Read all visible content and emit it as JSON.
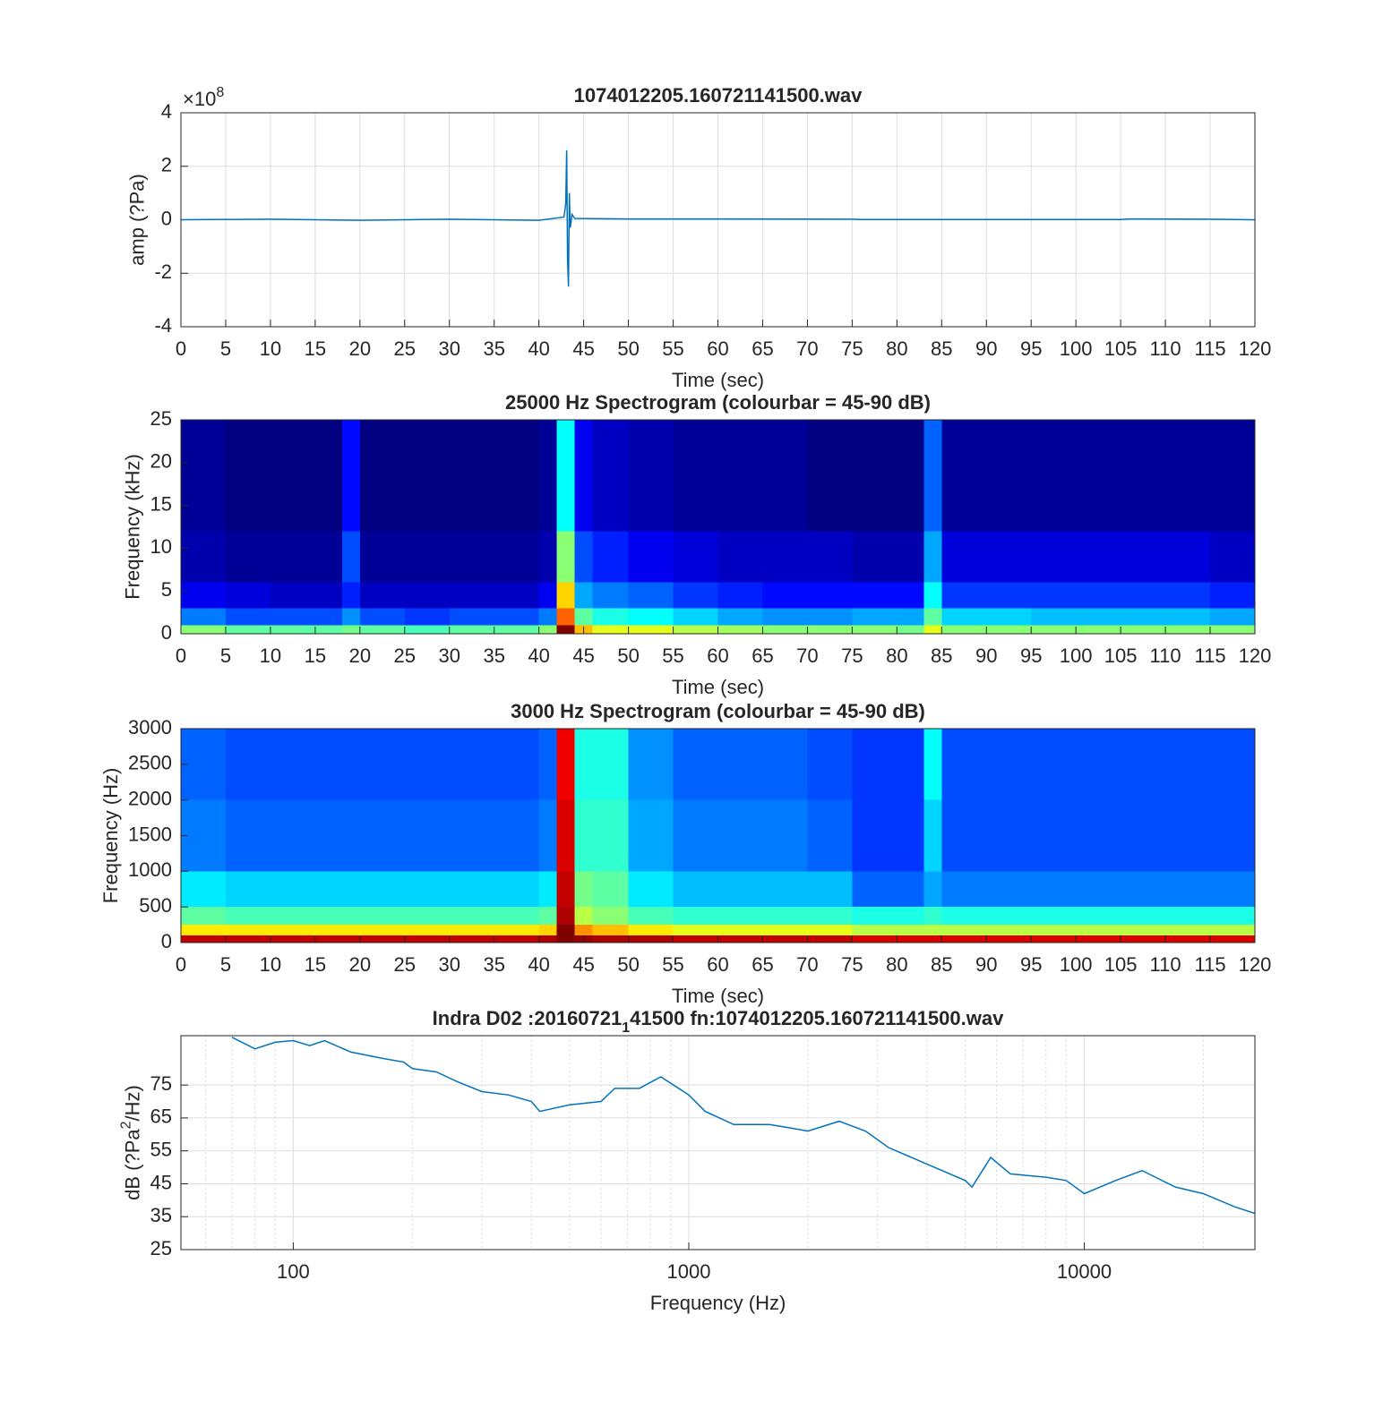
{
  "chart_data": [
    {
      "type": "line",
      "title": "1074012205.160721141500.wav",
      "xlabel": "Time (sec)",
      "ylabel": "amp (?Pa)",
      "y_multiplier": "×10",
      "y_multiplier_exp": "8",
      "x": [
        0,
        10,
        20,
        30,
        40,
        42.8,
        43.0,
        43.1,
        43.2,
        43.3,
        43.4,
        43.5,
        43.7,
        44,
        46,
        50,
        60,
        75,
        76,
        90,
        105,
        106,
        115,
        120
      ],
      "values": [
        0,
        0.02,
        -0.02,
        0.02,
        -0.02,
        0.1,
        0.6,
        2.6,
        -1.5,
        -2.5,
        1.0,
        -0.3,
        0.2,
        0.05,
        0.04,
        0.03,
        0.03,
        0.02,
        0.01,
        0.01,
        0.01,
        0.03,
        0.02,
        0
      ],
      "color": "#0072bd",
      "xlim": [
        0,
        120
      ],
      "ylim": [
        -4,
        4
      ],
      "xticks": [
        0,
        5,
        10,
        15,
        20,
        25,
        30,
        35,
        40,
        45,
        50,
        55,
        60,
        65,
        70,
        75,
        80,
        85,
        90,
        95,
        100,
        105,
        110,
        115,
        120
      ],
      "yticks": [
        -4,
        -2,
        0,
        2,
        4
      ],
      "grid": true
    },
    {
      "type": "heatmap",
      "title": "25000 Hz Spectrogram (colourbar = 45-90 dB)",
      "xlabel": "Time (sec)",
      "ylabel": "Frequency (kHz)",
      "colormap": "jet",
      "clim": [
        45,
        90
      ],
      "x_edges": [
        0,
        5,
        10,
        15,
        18,
        20,
        25,
        30,
        35,
        40,
        42,
        44,
        46,
        50,
        55,
        60,
        65,
        70,
        75,
        80,
        83,
        85,
        90,
        95,
        100,
        105,
        110,
        115,
        120
      ],
      "y_edges": [
        0,
        1,
        3,
        6,
        12,
        25
      ],
      "z": [
        [
          68,
          66,
          66,
          66,
          67,
          66,
          65,
          66,
          66,
          68,
          90,
          76,
          72,
          72,
          70,
          69,
          68,
          68,
          68,
          67,
          72,
          68,
          68,
          68,
          68,
          68,
          68,
          68
        ],
        [
          56,
          54,
          54,
          54,
          57,
          54,
          53,
          54,
          54,
          56,
          80,
          66,
          63,
          62,
          60,
          58,
          57,
          57,
          58,
          58,
          66,
          60,
          60,
          59,
          59,
          59,
          59,
          58
        ],
        [
          50,
          49,
          48,
          48,
          52,
          48,
          48,
          48,
          48,
          50,
          75,
          58,
          56,
          55,
          53,
          52,
          51,
          51,
          51,
          51,
          62,
          53,
          53,
          53,
          53,
          53,
          53,
          52
        ],
        [
          47,
          46,
          46,
          46,
          54,
          46,
          46,
          46,
          46,
          47,
          68,
          54,
          52,
          50,
          49,
          48,
          48,
          48,
          47,
          47,
          58,
          49,
          49,
          49,
          49,
          49,
          49,
          48
        ],
        [
          46,
          45,
          45,
          45,
          51,
          45,
          45,
          45,
          45,
          46,
          62,
          50,
          48,
          47,
          46,
          46,
          46,
          45,
          45,
          45,
          55,
          46,
          46,
          46,
          46,
          46,
          46,
          46
        ]
      ],
      "xlim": [
        0,
        120
      ],
      "ylim": [
        0,
        25
      ],
      "xticks": [
        0,
        5,
        10,
        15,
        20,
        25,
        30,
        35,
        40,
        45,
        50,
        55,
        60,
        65,
        70,
        75,
        80,
        85,
        90,
        95,
        100,
        105,
        110,
        115,
        120
      ],
      "yticks": [
        0,
        5,
        10,
        15,
        20,
        25
      ],
      "grid": false
    },
    {
      "type": "heatmap",
      "title": "3000 Hz Spectrogram (colourbar = 45-90 dB)",
      "xlabel": "Time (sec)",
      "ylabel": "Frequency (Hz)",
      "colormap": "jet",
      "clim": [
        45,
        90
      ],
      "x_edges": [
        0,
        5,
        10,
        15,
        18,
        20,
        25,
        30,
        35,
        40,
        42,
        44,
        46,
        50,
        55,
        60,
        65,
        70,
        75,
        80,
        83,
        85,
        90,
        95,
        100,
        105,
        110,
        115,
        120
      ],
      "y_edges": [
        0,
        100,
        250,
        500,
        1000,
        2000,
        3000
      ],
      "z": [
        [
          87,
          87,
          87,
          87,
          87,
          87,
          87,
          87,
          87,
          88,
          90,
          89,
          88,
          88,
          87,
          87,
          87,
          87,
          86,
          86,
          86,
          86,
          86,
          86,
          86,
          86,
          86,
          86
        ],
        [
          74,
          74,
          74,
          74,
          74,
          74,
          74,
          74,
          74,
          75,
          90,
          78,
          76,
          74,
          72,
          72,
          72,
          72,
          70,
          70,
          70,
          70,
          70,
          70,
          70,
          70,
          70,
          70
        ],
        [
          66,
          65,
          65,
          65,
          65,
          65,
          65,
          65,
          65,
          66,
          88,
          70,
          68,
          65,
          64,
          64,
          64,
          64,
          63,
          63,
          64,
          63,
          63,
          63,
          63,
          63,
          63,
          63
        ],
        [
          61,
          60,
          60,
          60,
          60,
          60,
          60,
          60,
          60,
          61,
          87,
          67,
          66,
          61,
          59,
          59,
          59,
          59,
          55,
          55,
          58,
          56,
          56,
          56,
          56,
          56,
          56,
          56
        ],
        [
          56,
          55,
          55,
          55,
          55,
          55,
          55,
          55,
          55,
          56,
          86,
          64,
          64,
          58,
          56,
          56,
          56,
          55,
          53,
          53,
          60,
          54,
          54,
          54,
          54,
          54,
          54,
          54
        ],
        [
          55,
          54,
          54,
          54,
          54,
          54,
          54,
          54,
          54,
          55,
          85,
          63,
          63,
          57,
          55,
          55,
          55,
          54,
          53,
          53,
          62,
          54,
          54,
          54,
          54,
          54,
          54,
          54
        ]
      ],
      "xlim": [
        0,
        120
      ],
      "ylim": [
        0,
        3000
      ],
      "xticks": [
        0,
        5,
        10,
        15,
        20,
        25,
        30,
        35,
        40,
        45,
        50,
        55,
        60,
        65,
        70,
        75,
        80,
        85,
        90,
        95,
        100,
        105,
        110,
        115,
        120
      ],
      "yticks": [
        0,
        500,
        1000,
        1500,
        2000,
        2500,
        3000
      ],
      "grid": false
    },
    {
      "type": "line",
      "title": "Indra D02 :20160721",
      "title_subscript": "1",
      "title_rest": "41500 fn:1074012205.160721141500.wav",
      "xlabel": "Frequency (Hz)",
      "ylabel": "dB  (?Pa",
      "ylabel_sup": "2",
      "ylabel_rest": "/Hz)",
      "log_x": true,
      "x": [
        70,
        80,
        90,
        100,
        110,
        120,
        140,
        170,
        190,
        200,
        230,
        260,
        300,
        350,
        400,
        420,
        500,
        600,
        650,
        750,
        850,
        1000,
        1100,
        1300,
        1600,
        1800,
        2000,
        2400,
        2800,
        3200,
        4000,
        5000,
        5200,
        5800,
        6500,
        8000,
        9000,
        10000,
        12000,
        14000,
        17000,
        20000,
        24000,
        27000
      ],
      "values": [
        89.5,
        86,
        88,
        88.5,
        87,
        88.5,
        85,
        83,
        82,
        80,
        79,
        76,
        73,
        72,
        70,
        67,
        69,
        70,
        74,
        74,
        77.5,
        72,
        67,
        63,
        63,
        62,
        61,
        64,
        61,
        56,
        51,
        46,
        44,
        53,
        48,
        47,
        46,
        42,
        46,
        49,
        44,
        42,
        38,
        36
      ],
      "color": "#0072bd",
      "xlim": [
        52,
        27000
      ],
      "ylim": [
        25,
        90
      ],
      "xticks": [
        100,
        1000,
        10000
      ],
      "yticks": [
        25,
        35,
        45,
        55,
        65,
        75
      ],
      "grid": true
    }
  ]
}
